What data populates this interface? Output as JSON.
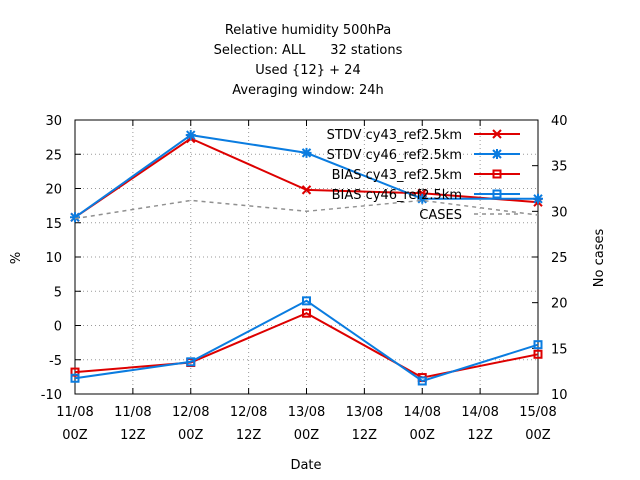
{
  "chart_data": {
    "type": "line",
    "title_lines": [
      "Relative humidity 500hPa",
      "Selection: ALL      32 stations",
      "Used {12} + 24",
      "Averaging window: 24h"
    ],
    "xlabel": "Date",
    "ylabel": "%",
    "y2label": "No cases",
    "x_ticks": [
      {
        "line1": "11/08",
        "line2": "00Z"
      },
      {
        "line1": "11/08",
        "line2": "12Z"
      },
      {
        "line1": "12/08",
        "line2": "00Z"
      },
      {
        "line1": "12/08",
        "line2": "12Z"
      },
      {
        "line1": "13/08",
        "line2": "00Z"
      },
      {
        "line1": "13/08",
        "line2": "12Z"
      },
      {
        "line1": "14/08",
        "line2": "00Z"
      },
      {
        "line1": "14/08",
        "line2": "12Z"
      },
      {
        "line1": "15/08",
        "line2": "00Z"
      }
    ],
    "ylim": [
      -10,
      30
    ],
    "yticks": [
      -10,
      -5,
      0,
      5,
      10,
      15,
      20,
      25,
      30
    ],
    "y2lim": [
      10,
      40
    ],
    "y2ticks": [
      10,
      15,
      20,
      25,
      30,
      35,
      40
    ],
    "grid": true,
    "legend_position": "top-right",
    "x_hours": [
      0,
      24,
      48,
      72,
      96
    ],
    "series": [
      {
        "name": "STDV cy43_ref2.5km",
        "color": "#dd0000",
        "marker": "x",
        "axis": "y1",
        "dash": false,
        "values": [
          15.8,
          27.3,
          19.8,
          19.3,
          18.0
        ]
      },
      {
        "name": "STDV cy46_ref2.5km",
        "color": "#0a7ce0",
        "marker": "star",
        "axis": "y1",
        "dash": false,
        "values": [
          15.8,
          27.8,
          25.2,
          18.5,
          18.5
        ]
      },
      {
        "name": "BIAS cy43_ref2.5km",
        "color": "#dd0000",
        "marker": "square",
        "axis": "y1",
        "dash": false,
        "values": [
          -6.8,
          -5.4,
          1.8,
          -7.6,
          -4.2
        ]
      },
      {
        "name": "BIAS cy46_ref2.5km",
        "color": "#0a7ce0",
        "marker": "square",
        "axis": "y1",
        "dash": false,
        "values": [
          -7.7,
          -5.3,
          3.6,
          -8.1,
          -2.8
        ]
      },
      {
        "name": "CASES",
        "color": "#909090",
        "marker": "none",
        "axis": "y2",
        "dash": true,
        "values": [
          29.2,
          31.2,
          30.0,
          31.2,
          29.6
        ]
      }
    ]
  }
}
